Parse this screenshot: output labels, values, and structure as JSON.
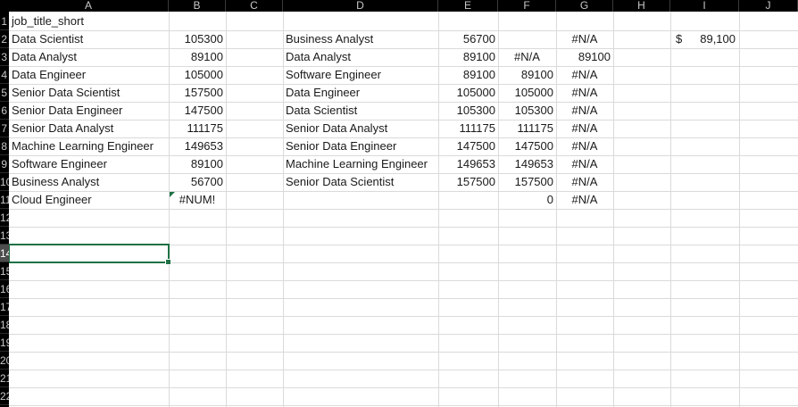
{
  "columns": [
    "A",
    "B",
    "C",
    "D",
    "E",
    "F",
    "G",
    "H",
    "I",
    "J"
  ],
  "row_numbers": [
    "1",
    "2",
    "3",
    "4",
    "5",
    "6",
    "7",
    "8",
    "9",
    "10",
    "11",
    "12",
    "13",
    "14",
    "15",
    "16",
    "17",
    "18",
    "19",
    "20",
    "21",
    "22"
  ],
  "selected_cell": "A14",
  "accent_color": "#1e7145",
  "cells": {
    "A1": "job_title_short",
    "A2": "Data Scientist",
    "A3": "Data Analyst",
    "A4": "Data Engineer",
    "A5": "Senior Data Scientist",
    "A6": "Senior Data Engineer",
    "A7": "Senior Data Analyst",
    "A8": "Machine Learning Engineer",
    "A9": "Software Engineer",
    "A10": "Business Analyst",
    "A11": "Cloud Engineer",
    "B2": "105300",
    "B3": "89100",
    "B4": "105000",
    "B5": "157500",
    "B6": "147500",
    "B7": "111175",
    "B8": "149653",
    "B9": "89100",
    "B10": "56700",
    "B11": "#NUM!",
    "D2": "Business Analyst",
    "D3": "Data Analyst",
    "D4": "Software Engineer",
    "D5": "Data Engineer",
    "D6": "Data Scientist",
    "D7": "Senior Data Analyst",
    "D8": "Senior Data Engineer",
    "D9": "Machine Learning Engineer",
    "D10": "Senior Data Scientist",
    "E2": "56700",
    "E3": "89100",
    "E4": "89100",
    "E5": "105000",
    "E6": "105300",
    "E7": "111175",
    "E8": "147500",
    "E9": "149653",
    "E10": "157500",
    "F3": "#N/A",
    "F4": "89100",
    "F5": "105000",
    "F6": "105300",
    "F7": "111175",
    "F8": "147500",
    "F9": "149653",
    "F10": "157500",
    "F11": "0",
    "G2": "#N/A",
    "G3": "89100",
    "G4": "#N/A",
    "G5": "#N/A",
    "G6": "#N/A",
    "G7": "#N/A",
    "G8": "#N/A",
    "G9": "#N/A",
    "G10": "#N/A",
    "G11": "#N/A",
    "I2_symbol": "$",
    "I2_value": "89,100"
  }
}
